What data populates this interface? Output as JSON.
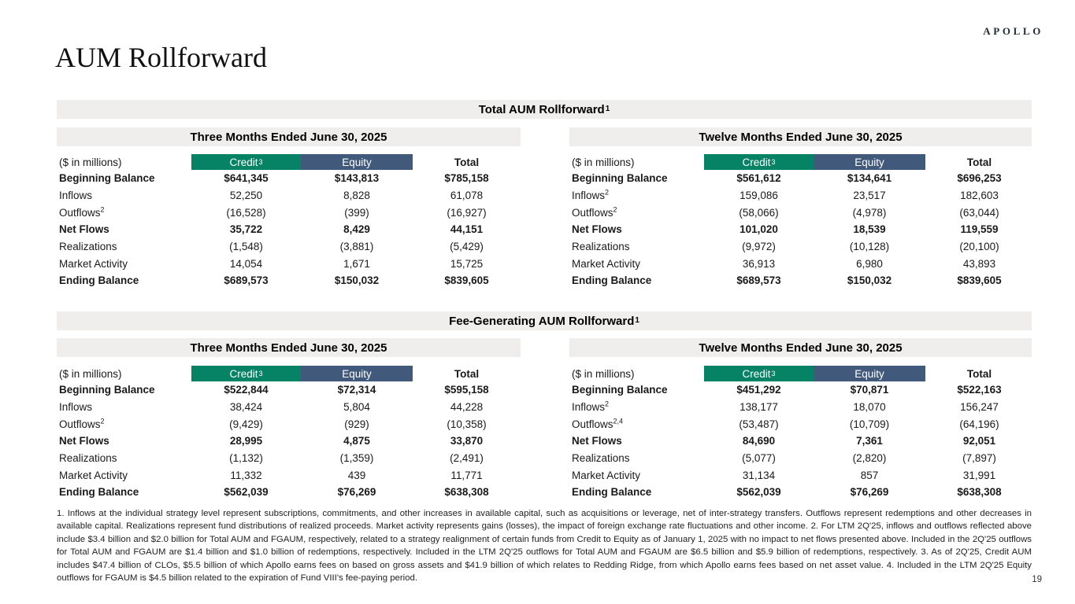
{
  "page": {
    "brand": "APOLLO",
    "title": "AUM Rollforward",
    "page_number": "19"
  },
  "colors": {
    "credit_header": "#068264",
    "equity_header": "#41597A",
    "band_background": "#EFEEEC"
  },
  "sections": [
    {
      "title": "Total AUM Rollforward",
      "title_sup": "1",
      "tables": [
        {
          "period": "Three Months Ended June 30, 2025",
          "unit_label": "($ in millions)",
          "col_credit": "Credit",
          "col_credit_sup": "3",
          "col_equity": "Equity",
          "col_equity_sup": "",
          "col_total": "Total",
          "rows": [
            {
              "label": "Beginning Balance",
              "sup": "",
              "bold": true,
              "values": [
                "$641,345",
                "$143,813",
                "$785,158"
              ]
            },
            {
              "label": "Inflows",
              "sup": "",
              "bold": false,
              "values": [
                "52,250",
                "8,828",
                "61,078"
              ]
            },
            {
              "label": "Outflows",
              "sup": "2",
              "bold": false,
              "values": [
                "(16,528)",
                "(399)",
                "(16,927)"
              ]
            },
            {
              "label": "Net Flows",
              "sup": "",
              "bold": true,
              "values": [
                "35,722",
                "8,429",
                "44,151"
              ]
            },
            {
              "label": "Realizations",
              "sup": "",
              "bold": false,
              "values": [
                "(1,548)",
                "(3,881)",
                "(5,429)"
              ]
            },
            {
              "label": "Market Activity",
              "sup": "",
              "bold": false,
              "values": [
                "14,054",
                "1,671",
                "15,725"
              ]
            },
            {
              "label": "Ending Balance",
              "sup": "",
              "bold": true,
              "values": [
                "$689,573",
                "$150,032",
                "$839,605"
              ]
            }
          ]
        },
        {
          "period": "Twelve Months Ended June 30, 2025",
          "unit_label": "($ in millions)",
          "col_credit": "Credit",
          "col_credit_sup": "3",
          "col_equity": "Equity",
          "col_equity_sup": "",
          "col_total": "Total",
          "rows": [
            {
              "label": "Beginning Balance",
              "sup": "",
              "bold": true,
              "values": [
                "$561,612",
                "$134,641",
                "$696,253"
              ]
            },
            {
              "label": "Inflows",
              "sup": "2",
              "bold": false,
              "values": [
                "159,086",
                "23,517",
                "182,603"
              ]
            },
            {
              "label": "Outflows",
              "sup": "2",
              "bold": false,
              "values": [
                "(58,066)",
                "(4,978)",
                "(63,044)"
              ]
            },
            {
              "label": "Net Flows",
              "sup": "",
              "bold": true,
              "values": [
                "101,020",
                "18,539",
                "119,559"
              ]
            },
            {
              "label": "Realizations",
              "sup": "",
              "bold": false,
              "values": [
                "(9,972)",
                "(10,128)",
                "(20,100)"
              ]
            },
            {
              "label": "Market Activity",
              "sup": "",
              "bold": false,
              "values": [
                "36,913",
                "6,980",
                "43,893"
              ]
            },
            {
              "label": "Ending Balance",
              "sup": "",
              "bold": true,
              "values": [
                "$689,573",
                "$150,032",
                "$839,605"
              ]
            }
          ]
        }
      ]
    },
    {
      "title": "Fee-Generating AUM Rollforward",
      "title_sup": "1",
      "tables": [
        {
          "period": "Three Months Ended June 30, 2025",
          "unit_label": "($ in millions)",
          "col_credit": "Credit",
          "col_credit_sup": "3",
          "col_equity": "Equity",
          "col_equity_sup": "",
          "col_total": "Total",
          "rows": [
            {
              "label": "Beginning Balance",
              "sup": "",
              "bold": true,
              "values": [
                "$522,844",
                "$72,314",
                "$595,158"
              ]
            },
            {
              "label": "Inflows",
              "sup": "",
              "bold": false,
              "values": [
                "38,424",
                "5,804",
                "44,228"
              ]
            },
            {
              "label": "Outflows",
              "sup": "2",
              "bold": false,
              "values": [
                "(9,429)",
                "(929)",
                "(10,358)"
              ]
            },
            {
              "label": "Net Flows",
              "sup": "",
              "bold": true,
              "values": [
                "28,995",
                "4,875",
                "33,870"
              ]
            },
            {
              "label": "Realizations",
              "sup": "",
              "bold": false,
              "values": [
                "(1,132)",
                "(1,359)",
                "(2,491)"
              ]
            },
            {
              "label": "Market Activity",
              "sup": "",
              "bold": false,
              "values": [
                "11,332",
                "439",
                "11,771"
              ]
            },
            {
              "label": "Ending Balance",
              "sup": "",
              "bold": true,
              "values": [
                "$562,039",
                "$76,269",
                "$638,308"
              ]
            }
          ]
        },
        {
          "period": "Twelve Months Ended June 30, 2025",
          "unit_label": "($ in millions)",
          "col_credit": "Credit",
          "col_credit_sup": "3",
          "col_equity": "Equity",
          "col_equity_sup": "",
          "col_total": "Total",
          "rows": [
            {
              "label": "Beginning Balance",
              "sup": "",
              "bold": true,
              "values": [
                "$451,292",
                "$70,871",
                "$522,163"
              ]
            },
            {
              "label": "Inflows",
              "sup": "2",
              "bold": false,
              "values": [
                "138,177",
                "18,070",
                "156,247"
              ]
            },
            {
              "label": "Outflows",
              "sup": "2,4",
              "bold": false,
              "values": [
                "(53,487)",
                "(10,709)",
                "(64,196)"
              ]
            },
            {
              "label": "Net Flows",
              "sup": "",
              "bold": true,
              "values": [
                "84,690",
                "7,361",
                "92,051"
              ]
            },
            {
              "label": "Realizations",
              "sup": "",
              "bold": false,
              "values": [
                "(5,077)",
                "(2,820)",
                "(7,897)"
              ]
            },
            {
              "label": "Market Activity",
              "sup": "",
              "bold": false,
              "values": [
                "31,134",
                "857",
                "31,991"
              ]
            },
            {
              "label": "Ending Balance",
              "sup": "",
              "bold": true,
              "values": [
                "$562,039",
                "$76,269",
                "$638,308"
              ]
            }
          ]
        }
      ]
    }
  ],
  "footnotes": "1. Inflows at the individual strategy level represent subscriptions, commitments, and other increases in available capital, such as acquisitions or leverage, net of inter-strategy transfers. Outflows represent redemptions and other decreases in available capital. Realizations represent fund distributions of realized proceeds. Market activity represents gains (losses), the impact of foreign exchange rate fluctuations and other income. 2. For LTM 2Q'25, inflows and outflows reflected above include $3.4 billion and $2.0 billion for Total AUM and FGAUM, respectively, related to a strategy realignment of certain funds from Credit to Equity as of January 1, 2025 with no impact to net flows presented above. Included in the 2Q'25 outflows for Total AUM and FGAUM are $1.4 billion and $1.0 billion of redemptions, respectively. Included in the LTM 2Q'25 outflows for Total AUM and FGAUM are $6.5 billion and $5.9 billion of redemptions, respectively. 3. As of 2Q'25, Credit AUM includes $47.4 billion of CLOs, $5.5 billion of which Apollo earns fees on based on gross assets and $41.9 billion of which relates to Redding Ridge, from which Apollo earns fees based on net asset value. 4. Included in the LTM 2Q'25 Equity outflows for FGAUM is $4.5 billion related to the expiration of Fund VIII's fee-paying period."
}
